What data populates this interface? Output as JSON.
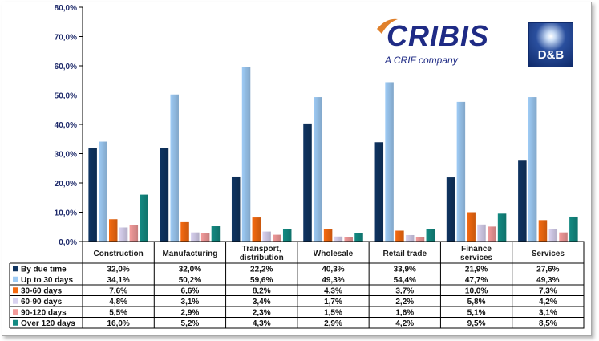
{
  "logos": {
    "cribis_name": "CRIBIS",
    "cribis_tagline": "A CRIF company",
    "db_name": "D&B"
  },
  "colors": {
    "series": [
      "#0f3461",
      "#9ecbf5",
      "#f56a10",
      "#d9d2f0",
      "#f29a9a",
      "#138a82"
    ],
    "axis_text": "#1f2b6b"
  },
  "chart_data": {
    "type": "bar",
    "title": "",
    "xlabel": "",
    "ylabel": "",
    "ylim": [
      0,
      80
    ],
    "yticks": [
      "0,0%",
      "10,0%",
      "20,0%",
      "30,0%",
      "40,0%",
      "50,0%",
      "60,0%",
      "70,0%",
      "80,0%"
    ],
    "grid": false,
    "legend": "table-left",
    "categories": [
      "Construction",
      "Manufacturing",
      "Transport, distribution",
      "Wholesale",
      "Retail trade",
      "Finance services",
      "Services"
    ],
    "category_lines": [
      [
        "Construction"
      ],
      [
        "Manufacturing"
      ],
      [
        "Transport,",
        "distribution"
      ],
      [
        "Wholesale"
      ],
      [
        "Retail trade"
      ],
      [
        "Finance",
        "services"
      ],
      [
        "Services"
      ]
    ],
    "series": [
      {
        "name": "By due time",
        "values": [
          32.0,
          32.0,
          22.2,
          40.3,
          33.9,
          21.9,
          27.6
        ],
        "labels": [
          "32,0%",
          "32,0%",
          "22,2%",
          "40,3%",
          "33,9%",
          "21,9%",
          "27,6%"
        ]
      },
      {
        "name": "Up to 30 days",
        "values": [
          34.1,
          50.2,
          59.6,
          49.3,
          54.4,
          47.7,
          49.3
        ],
        "labels": [
          "34,1%",
          "50,2%",
          "59,6%",
          "49,3%",
          "54,4%",
          "47,7%",
          "49,3%"
        ]
      },
      {
        "name": "30-60 days",
        "values": [
          7.6,
          6.6,
          8.2,
          4.3,
          3.7,
          10.0,
          7.3
        ],
        "labels": [
          "7,6%",
          "6,6%",
          "8,2%",
          "4,3%",
          "3,7%",
          "10,0%",
          "7,3%"
        ]
      },
      {
        "name": "60-90 days",
        "values": [
          4.8,
          3.1,
          3.4,
          1.7,
          2.2,
          5.8,
          4.2
        ],
        "labels": [
          "4,8%",
          "3,1%",
          "3,4%",
          "1,7%",
          "2,2%",
          "5,8%",
          "4,2%"
        ]
      },
      {
        "name": "90-120 days",
        "values": [
          5.5,
          2.9,
          2.3,
          1.5,
          1.6,
          5.1,
          3.1
        ],
        "labels": [
          "5,5%",
          "2,9%",
          "2,3%",
          "1,5%",
          "1,6%",
          "5,1%",
          "3,1%"
        ]
      },
      {
        "name": "Over 120 days",
        "values": [
          16.0,
          5.2,
          4.3,
          2.9,
          4.2,
          9.5,
          8.5
        ],
        "labels": [
          "16,0%",
          "5,2%",
          "4,3%",
          "2,9%",
          "4,2%",
          "9,5%",
          "8,5%"
        ]
      }
    ]
  }
}
